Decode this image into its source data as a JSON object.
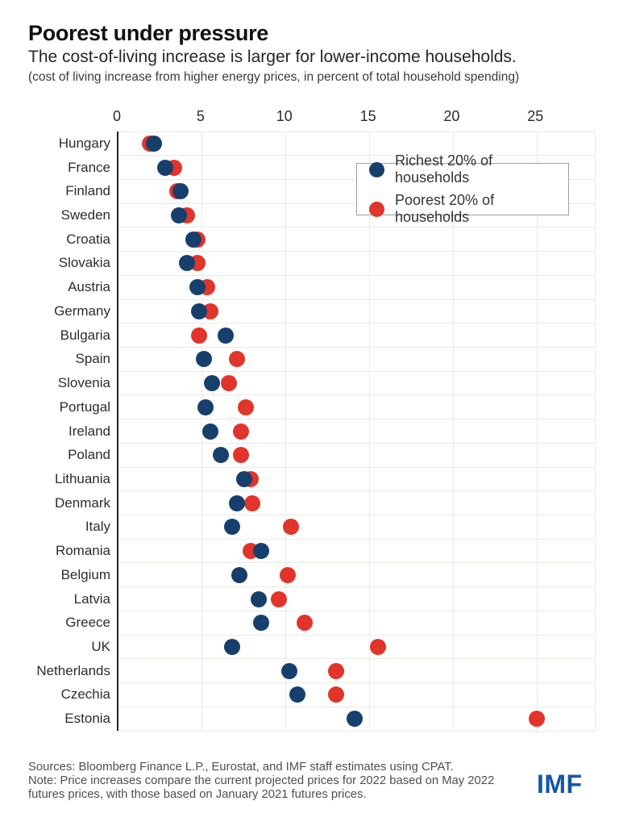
{
  "header": {
    "title": "Poorest under pressure",
    "subtitle": "The cost-of-living increase is larger for lower-income households.",
    "unit_note": "(cost of living increase from higher energy prices, in percent of total household spending)"
  },
  "chart_data": {
    "type": "scatter",
    "title": "Poorest under pressure",
    "xlabel": "",
    "ylabel": "",
    "x_ticks": [
      0,
      5,
      10,
      15,
      20,
      25
    ],
    "xlim": [
      0,
      28.5
    ],
    "grid": true,
    "legend_position": "top-right",
    "categories": [
      "Hungary",
      "France",
      "Finland",
      "Sweden",
      "Croatia",
      "Slovakia",
      "Austria",
      "Germany",
      "Bulgaria",
      "Spain",
      "Slovenia",
      "Portugal",
      "Ireland",
      "Poland",
      "Lithuania",
      "Denmark",
      "Italy",
      "Romania",
      "Belgium",
      "Latvia",
      "Greece",
      "UK",
      "Netherlands",
      "Czechia",
      "Estonia"
    ],
    "series": [
      {
        "name": "Richest 20% of households",
        "color": "#173f6d",
        "values": [
          2.1,
          2.8,
          3.7,
          3.6,
          4.5,
          4.1,
          4.7,
          4.8,
          6.4,
          5.1,
          5.6,
          5.2,
          5.5,
          6.1,
          7.5,
          7.1,
          6.8,
          8.5,
          7.2,
          8.4,
          8.5,
          6.8,
          10.2,
          10.7,
          14.1
        ]
      },
      {
        "name": "Poorest 20% of households",
        "color": "#e1342a",
        "values": [
          1.9,
          3.3,
          3.5,
          4.1,
          4.7,
          4.7,
          5.3,
          5.5,
          4.8,
          7.1,
          6.6,
          7.6,
          7.3,
          7.3,
          7.9,
          8.0,
          10.3,
          7.9,
          10.1,
          9.6,
          11.1,
          15.5,
          13.0,
          13.0,
          25.0
        ]
      }
    ]
  },
  "footer": {
    "sources": "Sources: Bloomberg Finance L.P., Eurostat, and IMF staff estimates using CPAT.",
    "note": "Note: Price increases compare the current projected prices for 2022 based on May 2022 futures prices, with those based on January 2021 futures prices.",
    "logo": "IMF"
  }
}
